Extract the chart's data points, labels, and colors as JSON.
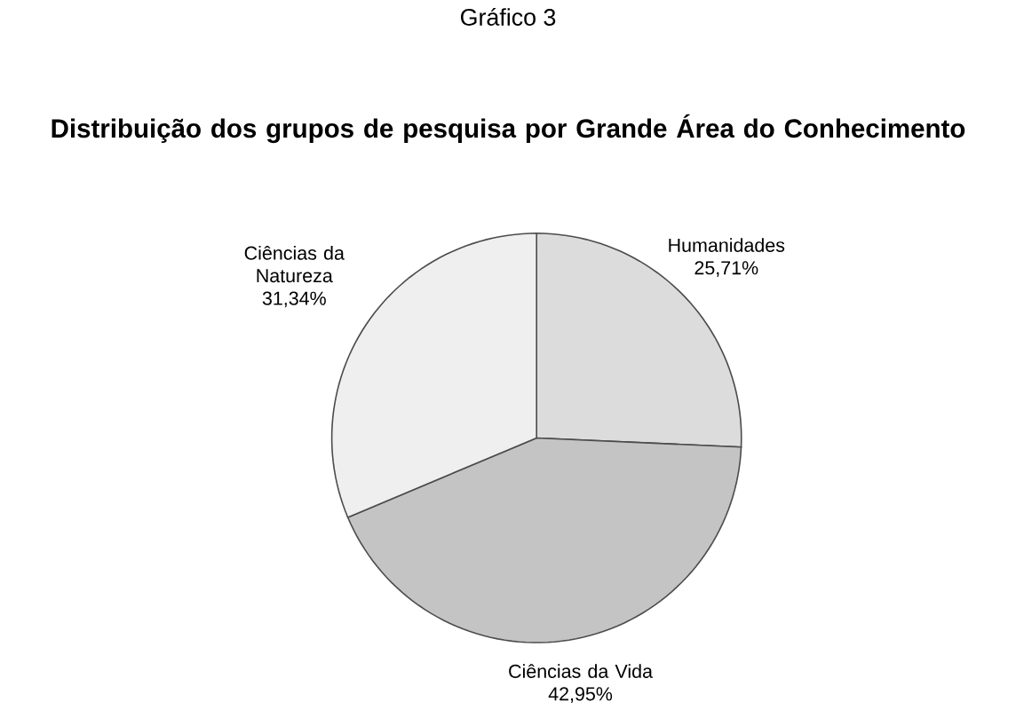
{
  "chart_data": {
    "type": "pie",
    "title": "Gráfico 3",
    "subtitle": "Distribuição dos grupos de pesquisa por Grande Área do Conhecimento",
    "categories": [
      "Humanidades",
      "Ciências da Vida",
      "Ciências da Natureza"
    ],
    "values": [
      25.71,
      42.95,
      31.34
    ],
    "colors": [
      "#dcdcdc",
      "#c4c4c4",
      "#efefef"
    ],
    "value_labels": [
      "25,71%",
      "42,95%",
      "31,34%"
    ]
  }
}
